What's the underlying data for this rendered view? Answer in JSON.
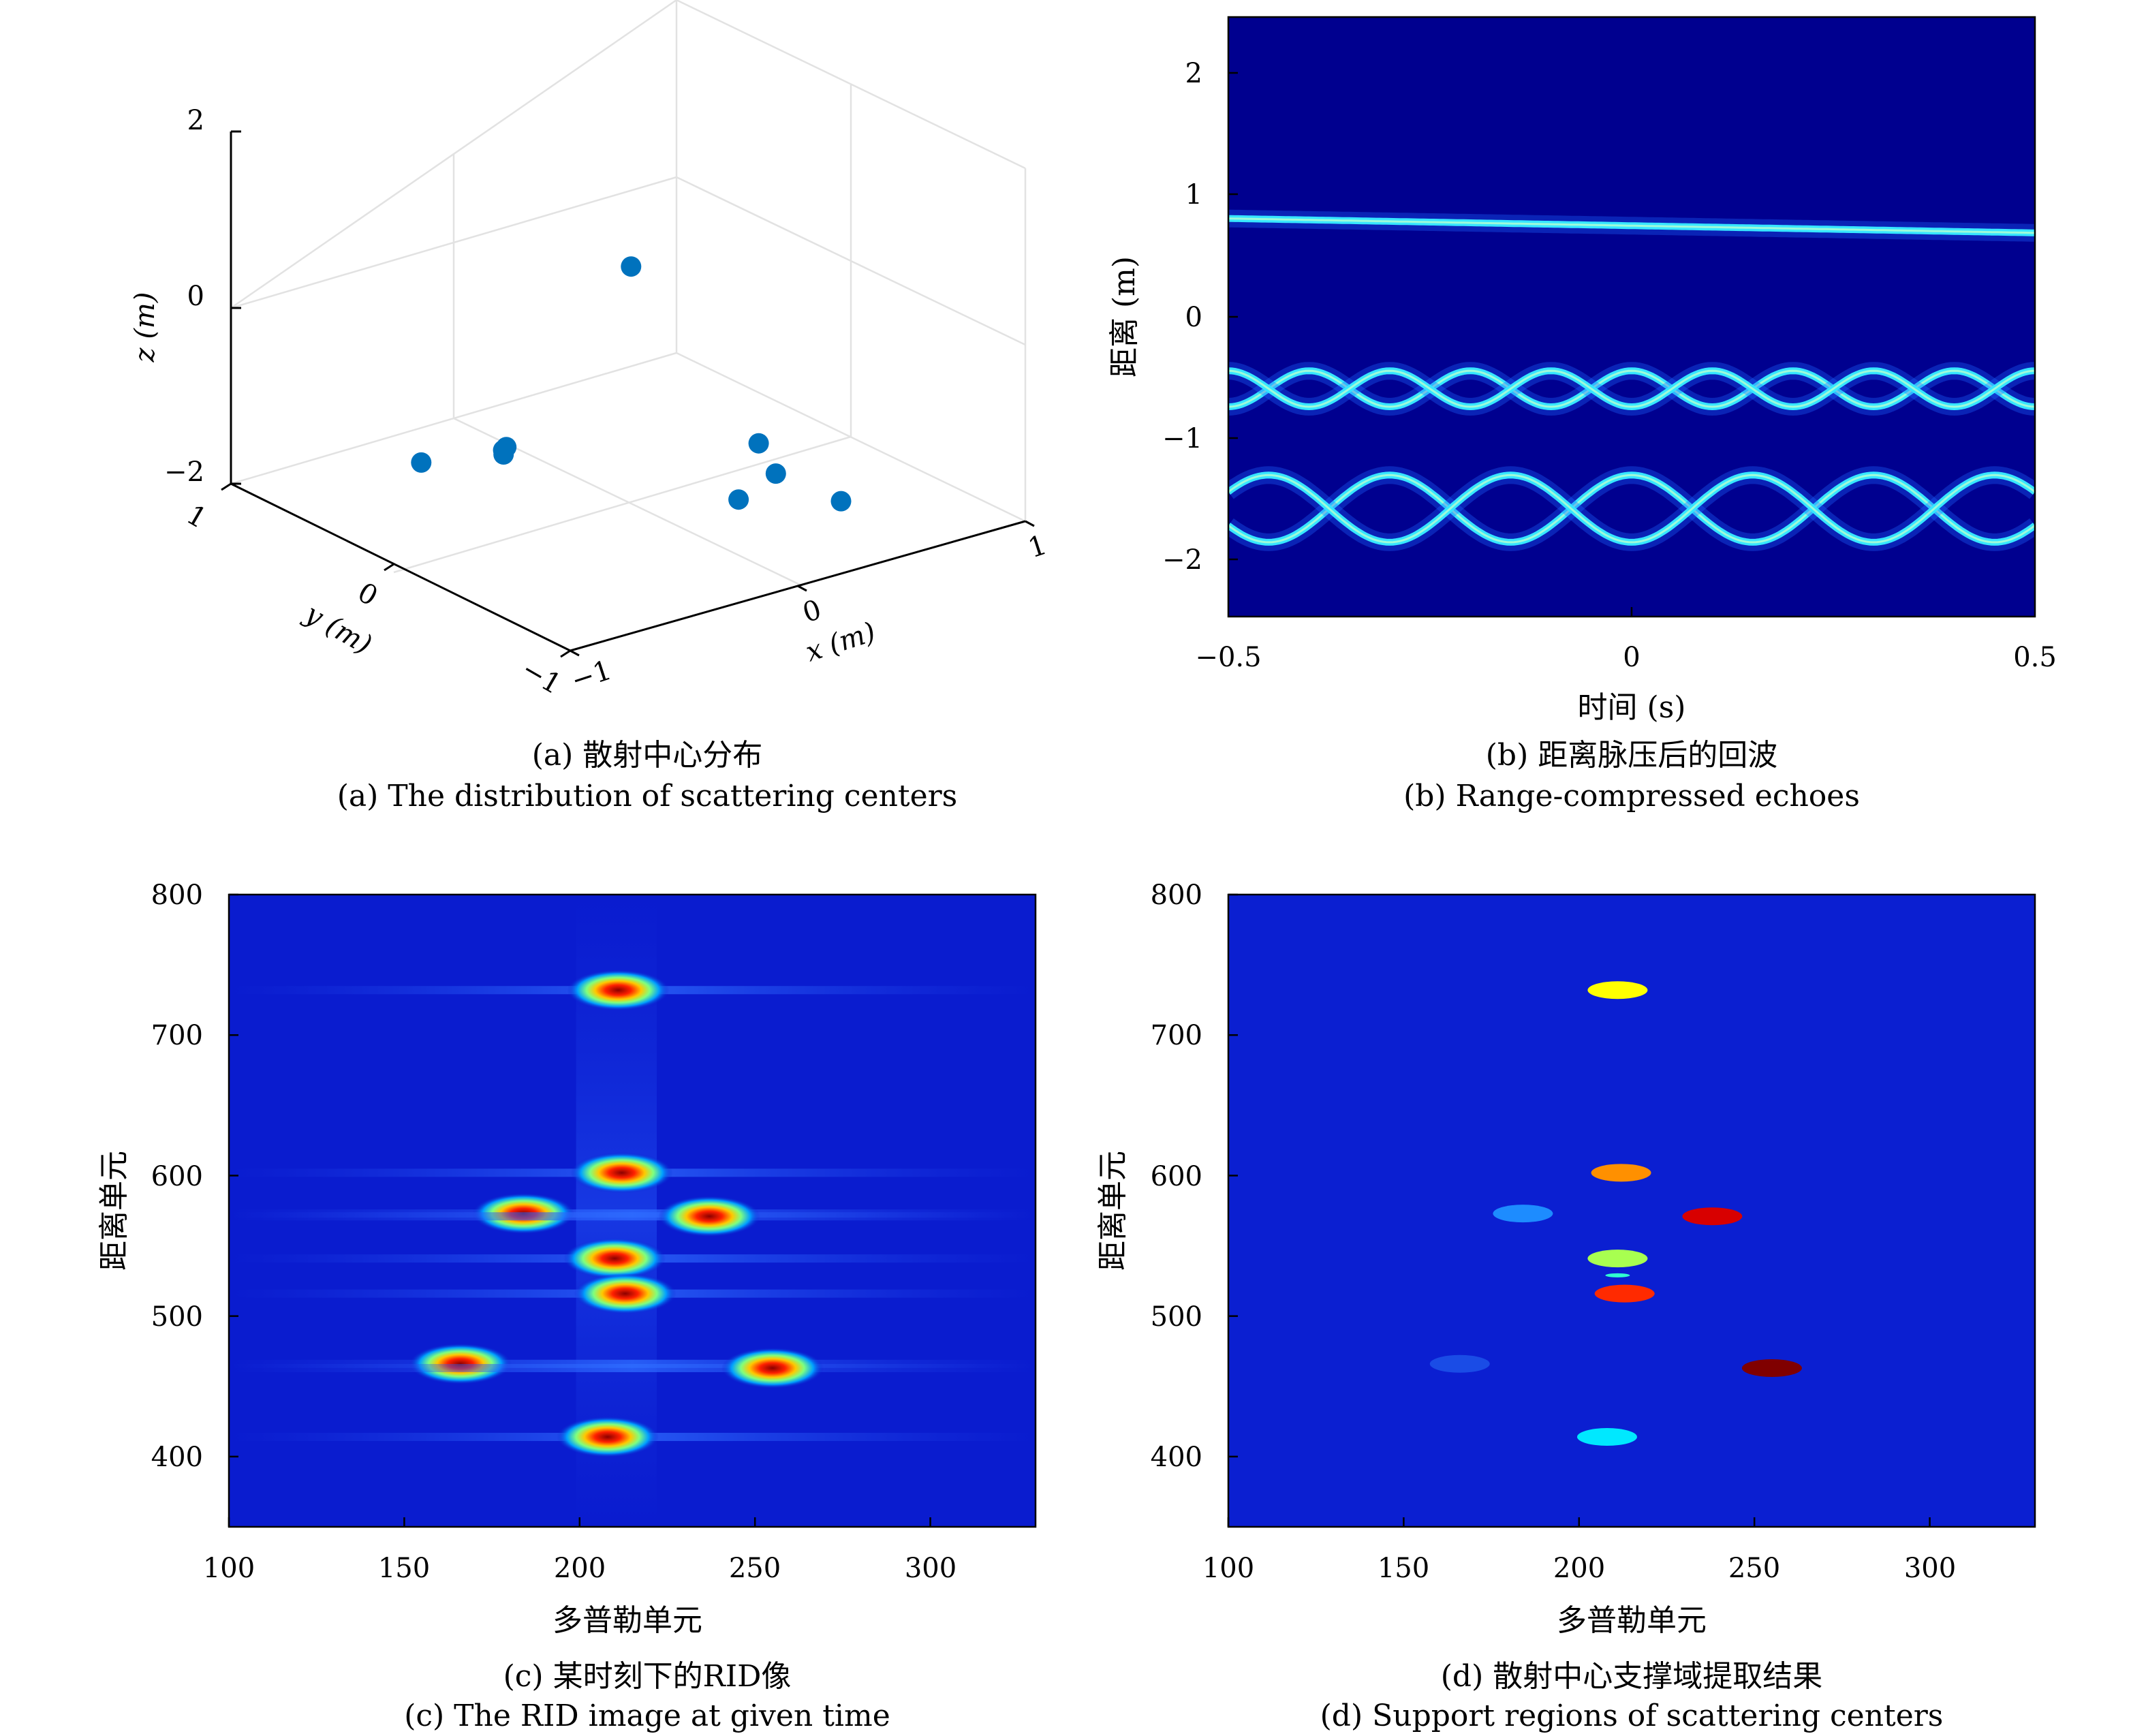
{
  "colors": {
    "background": "#ffffff",
    "jet_dark": "#00008f",
    "jet_blue": "#0a1ccf",
    "support_bg": "#0b1fd1",
    "marker": "#0072bd",
    "axis": "#000000",
    "grid": "#e0e0e0"
  },
  "captions": {
    "a_zh": "(a) 散射中心分布",
    "a_en": "(a) The distribution of scattering centers",
    "b_zh": "(b) 距离脉压后的回波",
    "b_en": "(b) Range-compressed echoes",
    "c_zh": "(c) 某时刻下的RID像",
    "c_en": "(c) The RID image at given time",
    "d_zh": "(d) 散射中心支撑域提取结果",
    "d_en": "(d) Support regions of scattering centers"
  },
  "chart_data": [
    {
      "id": "a",
      "type": "scatter",
      "title": "",
      "xlabel": "x (m)",
      "ylabel": "y (m)",
      "zlabel": "z (m)",
      "xlim": [
        -1,
        1
      ],
      "ylim": [
        -1,
        1
      ],
      "zlim": [
        -2,
        2
      ],
      "xticks": [
        "−1",
        "0",
        "1"
      ],
      "yticks": [
        "−1",
        "0",
        "1"
      ],
      "zticks": [
        "−2",
        "0",
        "2"
      ],
      "grid": true,
      "points": [
        {
          "x": 0.05,
          "y": 0.05,
          "z": 0.6
        },
        {
          "x": -0.4,
          "y": 0.2,
          "z": -1.3
        },
        {
          "x": 0.35,
          "y": -0.3,
          "z": -1.3
        },
        {
          "x": -0.2,
          "y": 0.45,
          "z": -1.65
        },
        {
          "x": 0.15,
          "y": -0.45,
          "z": -1.65
        },
        {
          "x": -0.1,
          "y": 0.6,
          "z": -1.95
        },
        {
          "x": 0.5,
          "y": -0.2,
          "z": -1.85
        },
        {
          "x": -0.35,
          "y": 0.75,
          "z": -2.0
        },
        {
          "x": 0.6,
          "y": -0.45,
          "z": -2.0
        }
      ]
    },
    {
      "id": "b",
      "type": "heatmap",
      "xlabel": "时间 (s)",
      "ylabel": "距离 (m)",
      "xlim": [
        -0.5,
        0.5
      ],
      "ylim": [
        -2.5,
        2.5
      ],
      "xticks": [
        "−0.5",
        "0",
        "0.5"
      ],
      "yticks": [
        "2",
        "1",
        "0",
        "−1",
        "−2"
      ],
      "colormap": "jet",
      "traces": [
        {
          "kind": "line",
          "start": 0.82,
          "end": 0.7
        },
        {
          "kind": "sinusoid",
          "center": -0.6,
          "amplitude": 0.15,
          "period": 0.2,
          "phase": 0
        },
        {
          "kind": "sinusoid",
          "center": -0.6,
          "amplitude": 0.15,
          "period": 0.2,
          "phase": 0.5
        },
        {
          "kind": "sinusoid",
          "center": -1.6,
          "amplitude": 0.28,
          "period": 0.3,
          "phase": 0
        },
        {
          "kind": "sinusoid",
          "center": -1.6,
          "amplitude": 0.28,
          "period": 0.3,
          "phase": 0.5
        }
      ]
    },
    {
      "id": "c",
      "type": "heatmap",
      "xlabel": "多普勒单元",
      "ylabel": "距离单元",
      "xlim": [
        100,
        330
      ],
      "ylim": [
        350,
        800
      ],
      "xticks": [
        "100",
        "150",
        "200",
        "250",
        "300"
      ],
      "yticks": [
        "800",
        "700",
        "600",
        "500",
        "400"
      ],
      "colormap": "jet",
      "blobs": [
        {
          "doppler": 211,
          "range": 732
        },
        {
          "doppler": 212,
          "range": 602
        },
        {
          "doppler": 184,
          "range": 573
        },
        {
          "doppler": 237,
          "range": 571
        },
        {
          "doppler": 210,
          "range": 541
        },
        {
          "doppler": 213,
          "range": 516
        },
        {
          "doppler": 166,
          "range": 466
        },
        {
          "doppler": 255,
          "range": 463
        },
        {
          "doppler": 208,
          "range": 414
        }
      ]
    },
    {
      "id": "d",
      "type": "heatmap",
      "xlabel": "多普勒单元",
      "ylabel": "距离单元",
      "xlim": [
        100,
        330
      ],
      "ylim": [
        350,
        800
      ],
      "xticks": [
        "100",
        "150",
        "200",
        "250",
        "300"
      ],
      "yticks": [
        "800",
        "700",
        "600",
        "500",
        "400"
      ],
      "regions": [
        {
          "doppler": 211,
          "range": 732,
          "color": "#ffff00"
        },
        {
          "doppler": 212,
          "range": 602,
          "color": "#ff9000"
        },
        {
          "doppler": 184,
          "range": 573,
          "color": "#1d8cff"
        },
        {
          "doppler": 238,
          "range": 571,
          "color": "#d80000"
        },
        {
          "doppler": 211,
          "range": 541,
          "color": "#a8ff50"
        },
        {
          "doppler": 211,
          "range": 529,
          "color": "#30ffd0"
        },
        {
          "doppler": 213,
          "range": 516,
          "color": "#ff2a00"
        },
        {
          "doppler": 166,
          "range": 466,
          "color": "#1a4ce6"
        },
        {
          "doppler": 255,
          "range": 463,
          "color": "#800000"
        },
        {
          "doppler": 208,
          "range": 414,
          "color": "#00e8ff"
        }
      ]
    }
  ]
}
